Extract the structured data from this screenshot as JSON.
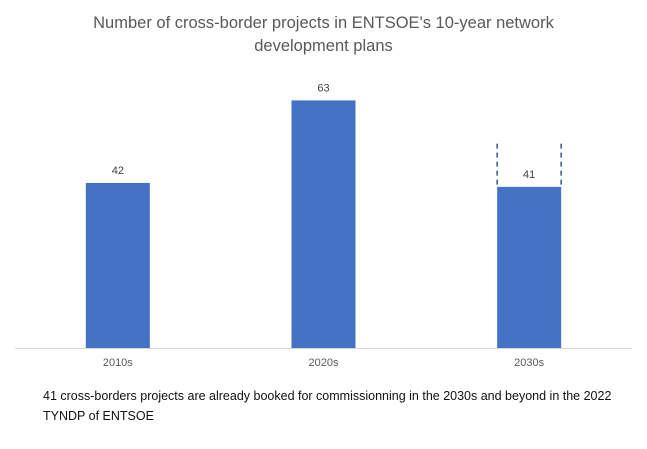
{
  "chart_data": {
    "type": "bar",
    "title_line1": "Number of cross-border projects in ENTSOE's 10-year network",
    "title_line2": "development plans",
    "categories": [
      "2010s",
      "2020s",
      "2030s"
    ],
    "values": [
      42,
      63,
      41
    ],
    "data_labels": [
      "42",
      "63",
      "41"
    ],
    "dashed_extension": {
      "category": "2030s",
      "upper_value": 52
    },
    "ylim": [
      0,
      88
    ],
    "grid": false,
    "xlabel": "",
    "ylabel": "",
    "bar_color": "#4472C4"
  },
  "note": "41 cross-borders projects are already booked for commissionning in the 2030s and beyond in the 2022 TYNDP of ENTSOE"
}
